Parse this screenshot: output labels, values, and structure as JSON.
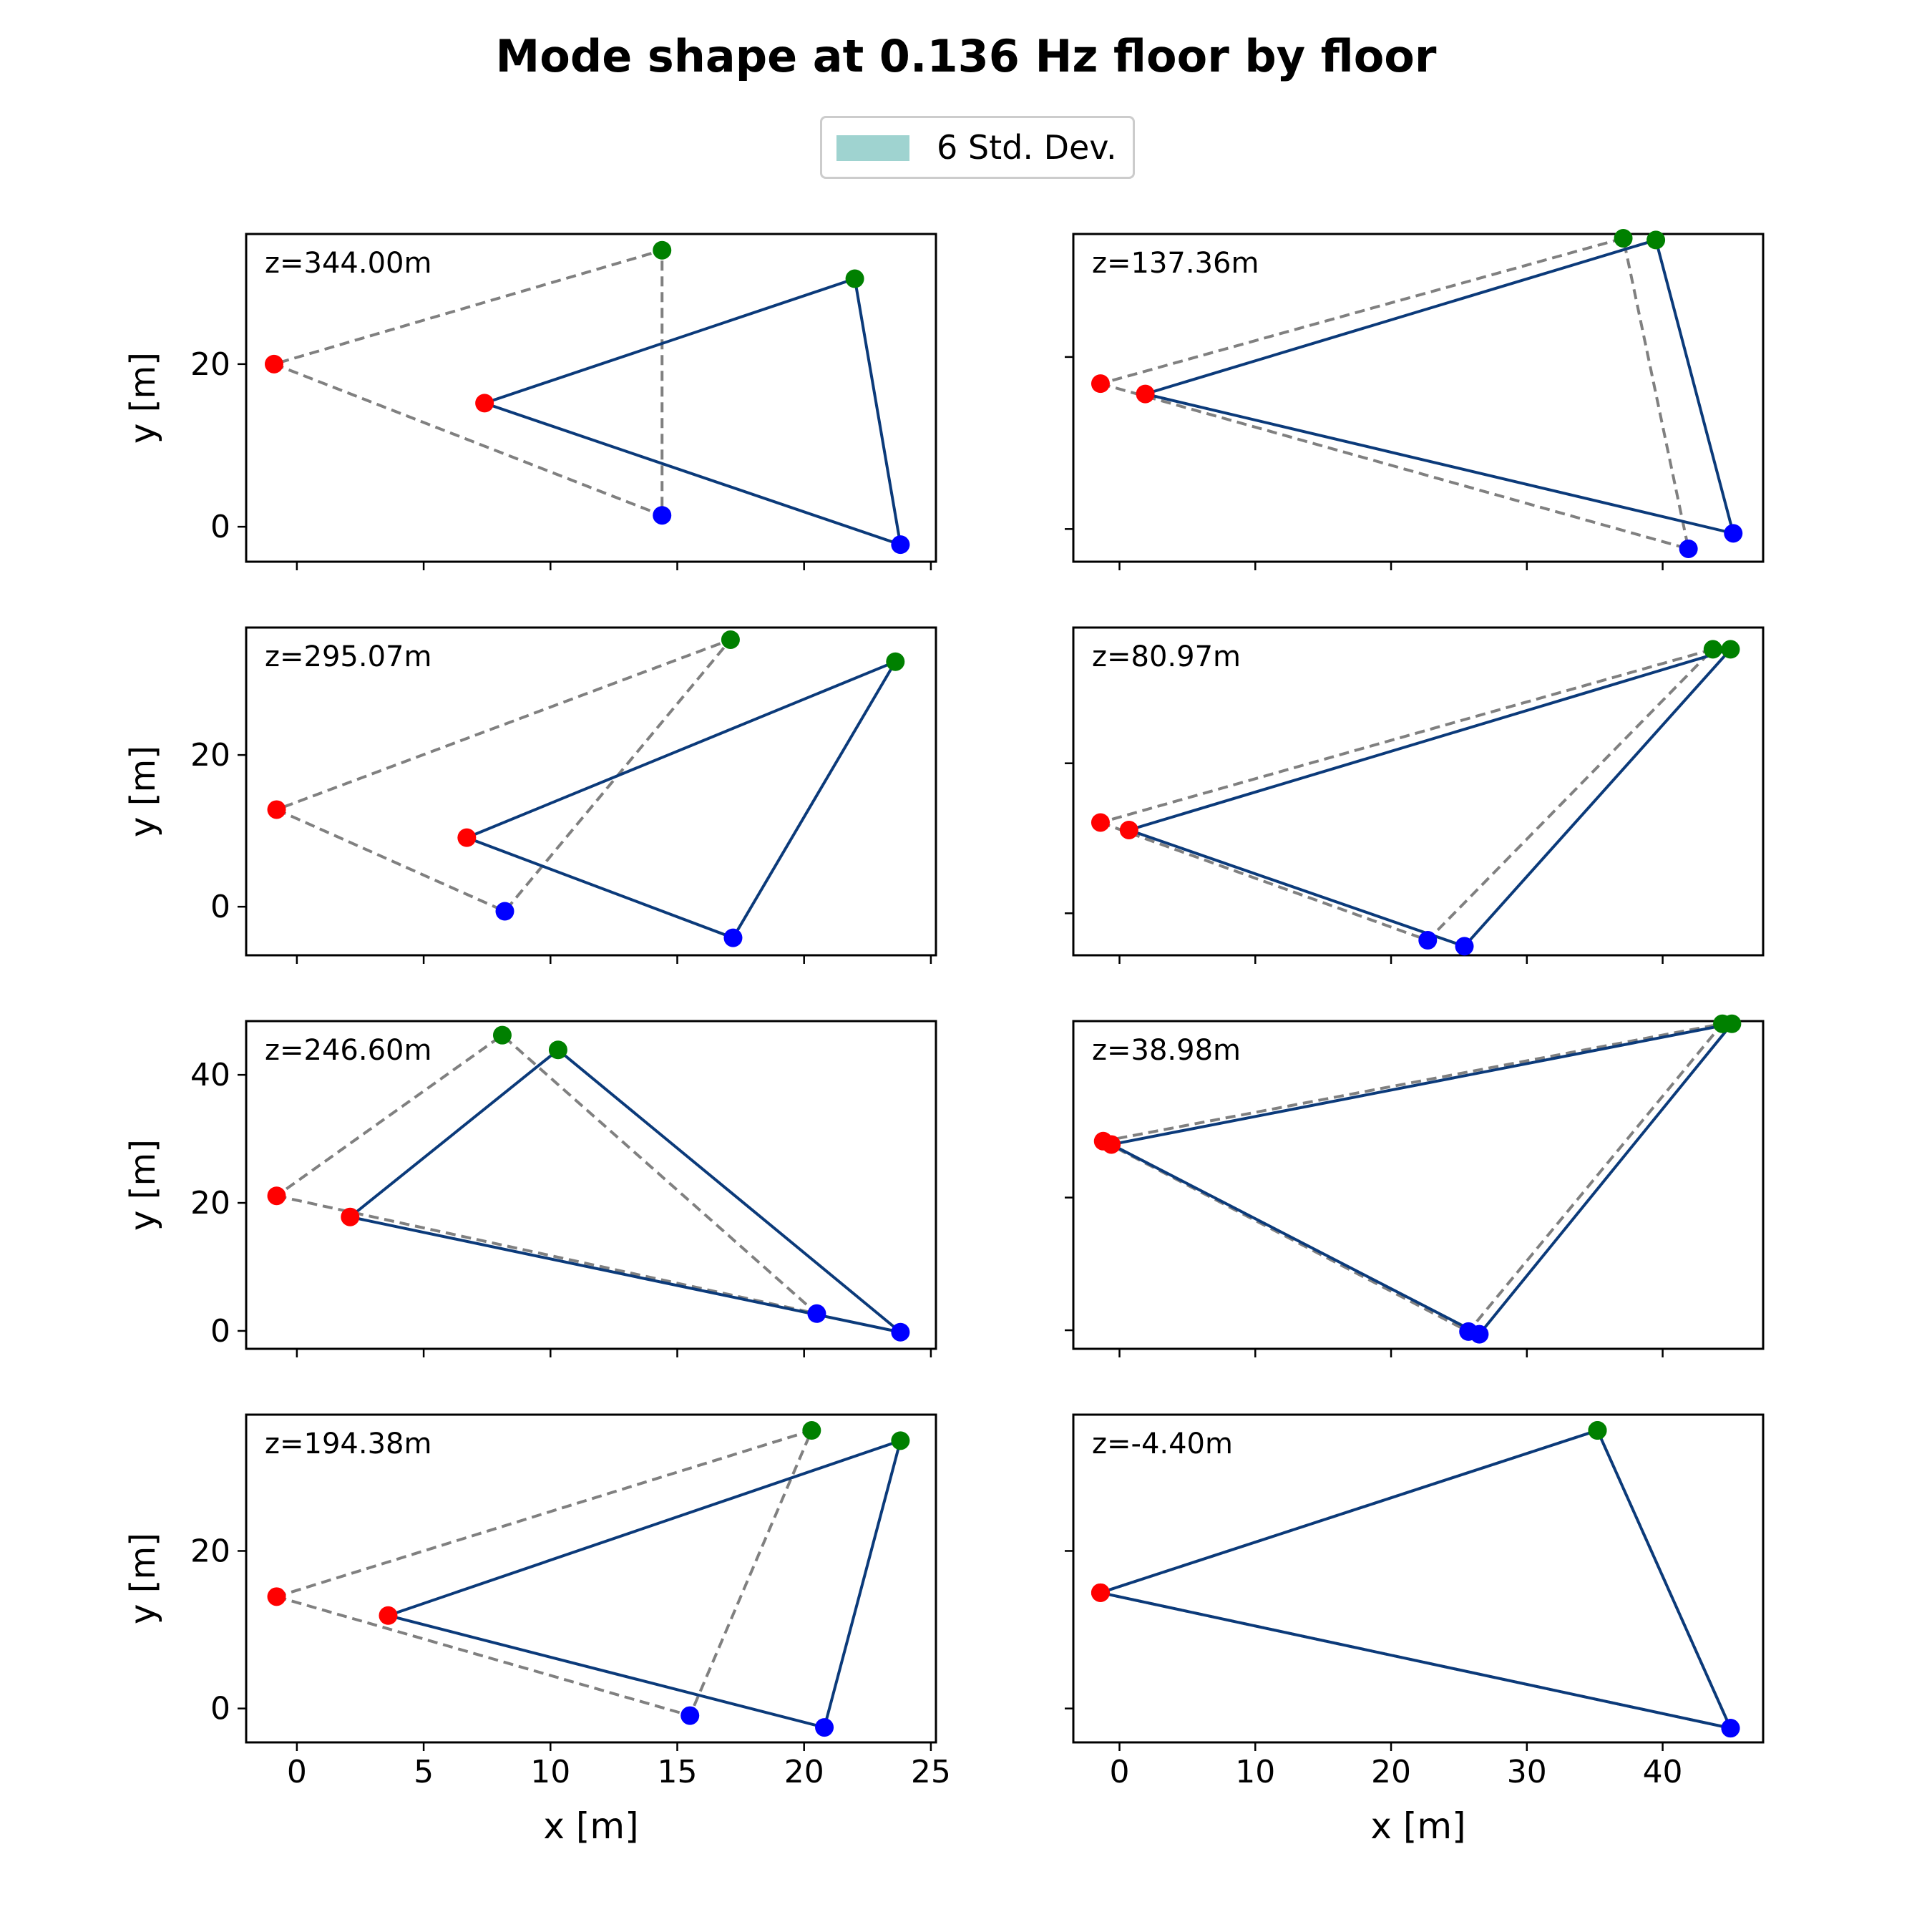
{
  "title": "Mode shape at 0.136 Hz floor by floor",
  "legend": {
    "label": "6 Std. Dev.",
    "color": "#9fd3d0"
  },
  "colors": {
    "deformed": "#0b3a7a",
    "undeformed": "#808080",
    "node_a": "#ff0000",
    "node_b": "#0000ff",
    "node_c": "#008000"
  },
  "chart_data": [
    {
      "type": "scatter",
      "label": "z=344.00m",
      "xlabel": "",
      "ylabel": "y [m]",
      "xlim": [
        -2,
        25.2
      ],
      "ylim": [
        -4.3,
        36
      ],
      "xticks": [
        0,
        5,
        10,
        15,
        20,
        25
      ],
      "yticks": [
        0,
        20
      ],
      "undeformed": [
        [
          -0.9,
          20.0
        ],
        [
          14.4,
          1.4
        ],
        [
          14.4,
          34.0
        ]
      ],
      "deformed": [
        [
          7.4,
          15.2
        ],
        [
          23.8,
          -2.2
        ],
        [
          22.0,
          30.5
        ]
      ]
    },
    {
      "type": "scatter",
      "label": "z=137.36m",
      "xlabel": "",
      "ylabel": "",
      "xlim": [
        -3.4,
        47.4
      ],
      "ylim": [
        -3.8,
        34.3
      ],
      "xticks": [
        0,
        10,
        20,
        30,
        40
      ],
      "yticks": [],
      "undeformed": [
        [
          -1.4,
          16.9
        ],
        [
          41.9,
          -2.3
        ],
        [
          37.1,
          33.8
        ]
      ],
      "deformed": [
        [
          1.9,
          15.7
        ],
        [
          45.2,
          -0.5
        ],
        [
          39.5,
          33.6
        ]
      ]
    },
    {
      "type": "scatter",
      "label": "z=295.07m",
      "xlabel": "",
      "ylabel": "y [m]",
      "xlim": [
        -2,
        25.2
      ],
      "ylim": [
        -6.4,
        36.8
      ],
      "xticks": [
        0,
        5,
        10,
        15,
        20,
        25
      ],
      "yticks": [
        0,
        20
      ],
      "undeformed": [
        [
          -0.8,
          12.8
        ],
        [
          8.2,
          -0.6
        ],
        [
          17.1,
          35.2
        ]
      ],
      "deformed": [
        [
          6.7,
          9.1
        ],
        [
          17.2,
          -4.1
        ],
        [
          23.6,
          32.3
        ]
      ]
    },
    {
      "type": "scatter",
      "label": "z=80.97m",
      "xlabel": "",
      "ylabel": "",
      "xlim": [
        -3.4,
        47.4
      ],
      "ylim": [
        -5.6,
        38.1
      ],
      "xticks": [
        0,
        10,
        20,
        30,
        40
      ],
      "yticks": [],
      "undeformed": [
        [
          -1.4,
          12.1
        ],
        [
          22.7,
          -3.6
        ],
        [
          43.7,
          35.2
        ]
      ],
      "deformed": [
        [
          0.7,
          11.1
        ],
        [
          25.4,
          -4.4
        ],
        [
          45.0,
          35.2
        ]
      ]
    },
    {
      "type": "scatter",
      "label": "z=246.60m",
      "xlabel": "",
      "ylabel": "y [m]",
      "xlim": [
        -2,
        25.2
      ],
      "ylim": [
        -2.8,
        48.4
      ],
      "xticks": [
        0,
        5,
        10,
        15,
        20,
        25
      ],
      "yticks": [
        0,
        20,
        40
      ],
      "undeformed": [
        [
          -0.8,
          21.1
        ],
        [
          20.5,
          2.7
        ],
        [
          8.1,
          46.2
        ]
      ],
      "deformed": [
        [
          2.1,
          17.8
        ],
        [
          23.8,
          -0.2
        ],
        [
          10.3,
          43.9
        ]
      ]
    },
    {
      "type": "scatter",
      "label": "z=38.98m",
      "xlabel": "",
      "ylabel": "",
      "xlim": [
        -3.4,
        47.4
      ],
      "ylim": [
        -2.8,
        46.6
      ],
      "xticks": [
        0,
        10,
        20,
        30,
        40
      ],
      "yticks": [],
      "undeformed": [
        [
          -1.2,
          28.5
        ],
        [
          25.7,
          -0.2
        ],
        [
          44.4,
          46.2
        ]
      ],
      "deformed": [
        [
          -0.6,
          28.0
        ],
        [
          26.5,
          -0.6
        ],
        [
          45.1,
          46.2
        ]
      ]
    },
    {
      "type": "scatter",
      "label": "z=194.38m",
      "xlabel": "x [m]",
      "ylabel": "y [m]",
      "xlim": [
        -2,
        25.2
      ],
      "ylim": [
        -4.3,
        37.3
      ],
      "xticks": [
        0,
        5,
        10,
        15,
        20,
        25
      ],
      "yticks": [
        0,
        20
      ],
      "undeformed": [
        [
          -0.8,
          14.2
        ],
        [
          15.5,
          -0.9
        ],
        [
          20.3,
          35.3
        ]
      ],
      "deformed": [
        [
          3.6,
          11.8
        ],
        [
          20.8,
          -2.4
        ],
        [
          23.8,
          34.0
        ]
      ]
    },
    {
      "type": "scatter",
      "label": "z=-4.40m",
      "xlabel": "x [m]",
      "ylabel": "",
      "xlim": [
        -3.4,
        47.4
      ],
      "ylim": [
        -4.3,
        37.3
      ],
      "xticks": [
        0,
        10,
        20,
        30,
        40
      ],
      "yticks": [],
      "undeformed": [
        [
          -1.4,
          14.7
        ],
        [
          45.0,
          -2.5
        ],
        [
          35.2,
          35.3
        ]
      ],
      "deformed": [
        [
          -1.4,
          14.7
        ],
        [
          45.0,
          -2.5
        ],
        [
          35.2,
          35.3
        ]
      ]
    }
  ]
}
